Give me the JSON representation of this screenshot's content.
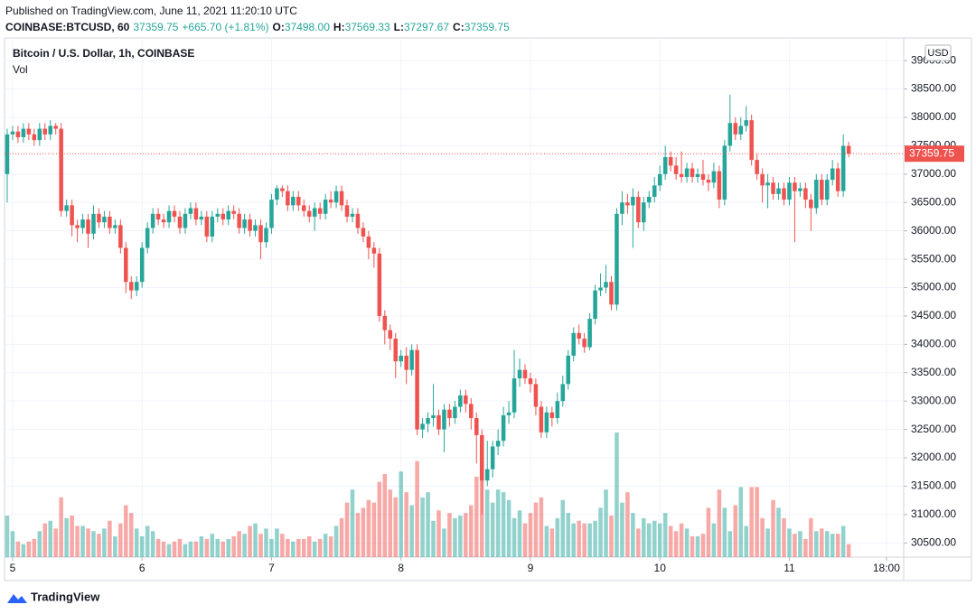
{
  "header": {
    "published": "Published on TradingView.com, June 11, 2021 11:20:10 UTC",
    "symbol": "COINBASE:BTCUSD, 60",
    "last": "37359.75",
    "change": "+665.70 (+1.81%)",
    "ohlc": [
      {
        "label": "O:",
        "value": "37498.00"
      },
      {
        "label": "H:",
        "value": "37569.33"
      },
      {
        "label": "L:",
        "value": "37297.67"
      },
      {
        "label": "C:",
        "value": "37359.75"
      }
    ]
  },
  "logo": "TradingView",
  "chart_data": {
    "type": "candlestick",
    "title": "Bitcoin / U.S. Dollar, 1h, COINBASE",
    "volume_label": "Vol",
    "currency": "USD",
    "up_color": "#26a69a",
    "down_color": "#ef5350",
    "grid": true,
    "last_price": {
      "value": 37359.75,
      "label": "37359.75"
    },
    "ylim": [
      30250,
      39400
    ],
    "yticks": [
      {
        "value": 30500,
        "label": "30500.00"
      },
      {
        "value": 31000,
        "label": "31000.00"
      },
      {
        "value": 31500,
        "label": "31500.00"
      },
      {
        "value": 32000,
        "label": "32000.00"
      },
      {
        "value": 32500,
        "label": "32500.00"
      },
      {
        "value": 33000,
        "label": "33000.00"
      },
      {
        "value": 33500,
        "label": "33500.00"
      },
      {
        "value": 34000,
        "label": "34000.00"
      },
      {
        "value": 34500,
        "label": "34500.00"
      },
      {
        "value": 35000,
        "label": "35000.00"
      },
      {
        "value": 35500,
        "label": "35500.00"
      },
      {
        "value": 36000,
        "label": "36000.00"
      },
      {
        "value": 36500,
        "label": "36500.00"
      },
      {
        "value": 37000,
        "label": "37000.00"
      },
      {
        "value": 37500,
        "label": "37500.00"
      },
      {
        "value": 38000,
        "label": "38000.00"
      },
      {
        "value": 38500,
        "label": "38500.00"
      },
      {
        "value": 39000,
        "label": "39000.00"
      }
    ],
    "xlim": [
      -0.5,
      166.2
    ],
    "xticks": [
      {
        "value": 1,
        "label": "5"
      },
      {
        "value": 25,
        "label": "6"
      },
      {
        "value": 49,
        "label": "7"
      },
      {
        "value": 73,
        "label": "8"
      },
      {
        "value": 97,
        "label": "9"
      },
      {
        "value": 121,
        "label": "10"
      },
      {
        "value": 145,
        "label": "11"
      },
      {
        "value": 163,
        "label": "18:00"
      }
    ],
    "vlim": [
      0,
      10000
    ],
    "open": [
      37000,
      37700,
      37750,
      37650,
      37800,
      37700,
      37600,
      37800,
      37700,
      37850,
      37800,
      36350,
      36450,
      36100,
      36050,
      36200,
      35950,
      36300,
      36150,
      36250,
      36050,
      36100,
      35700,
      35100,
      34950,
      35100,
      35700,
      36050,
      36300,
      36200,
      36150,
      36350,
      36250,
      36050,
      36300,
      36400,
      36200,
      36250,
      35900,
      36250,
      36300,
      36200,
      36350,
      36300,
      36050,
      36200,
      36000,
      36100,
      35800,
      36050,
      36550,
      36750,
      36700,
      36450,
      36600,
      36450,
      36350,
      36250,
      36400,
      36300,
      36550,
      36500,
      36700,
      36450,
      36250,
      36300,
      36050,
      35900,
      35700,
      35600,
      34500,
      34250,
      34100,
      33700,
      33800,
      33550,
      33900,
      32500,
      32600,
      32700,
      32750,
      32500,
      32850,
      32700,
      32900,
      33100,
      32950,
      32700,
      32400,
      31600,
      31800,
      32200,
      32300,
      32750,
      32800,
      33400,
      33550,
      33400,
      33300,
      32900,
      32450,
      32800,
      32700,
      33000,
      33300,
      33800,
      34200,
      34100,
      33950,
      34450,
      34950,
      35000,
      35100,
      34700,
      36300,
      36500,
      36450,
      36600,
      36150,
      36500,
      36600,
      36800,
      37000,
      37300,
      37150,
      37000,
      36950,
      37100,
      36950,
      37000,
      36900,
      36850,
      37050,
      36550,
      37500,
      37900,
      37700,
      37850,
      37950,
      37250,
      37000,
      36800,
      36850,
      36650,
      36750,
      36550,
      36850,
      36700,
      36750,
      36550,
      36400,
      36900,
      36550,
      36900,
      37100,
      36700,
      37498
    ],
    "high": [
      37800,
      37850,
      37850,
      37900,
      37900,
      37800,
      37900,
      37900,
      37950,
      37900,
      37900,
      36550,
      36550,
      36200,
      36300,
      36300,
      36450,
      36400,
      36350,
      36350,
      36200,
      36200,
      35800,
      35200,
      35200,
      35800,
      36150,
      36400,
      36400,
      36300,
      36450,
      36450,
      36350,
      36400,
      36500,
      36500,
      36350,
      36350,
      36350,
      36400,
      36400,
      36450,
      36450,
      36400,
      36300,
      36300,
      36200,
      36200,
      36150,
      36650,
      36800,
      36800,
      36800,
      36700,
      36700,
      36550,
      36450,
      36500,
      36500,
      36650,
      36700,
      36800,
      36800,
      36550,
      36400,
      36400,
      36150,
      36000,
      35800,
      35700,
      34600,
      34350,
      34200,
      33900,
      33950,
      34000,
      34000,
      32700,
      32800,
      33300,
      32850,
      32950,
      32950,
      33000,
      33200,
      33200,
      33050,
      32800,
      32500,
      32300,
      32300,
      32500,
      32900,
      33000,
      33900,
      33750,
      33650,
      33500,
      33400,
      33000,
      32900,
      32900,
      33150,
      33450,
      33900,
      34300,
      34350,
      34200,
      34550,
      35050,
      35250,
      35400,
      35200,
      36400,
      36700,
      36650,
      36750,
      36700,
      36600,
      36700,
      36950,
      37150,
      37500,
      37400,
      37300,
      37400,
      37200,
      37200,
      37100,
      37250,
      37000,
      37200,
      37150,
      37600,
      38400,
      38000,
      38000,
      38200,
      38050,
      37350,
      37100,
      37000,
      36950,
      36850,
      36850,
      36950,
      36950,
      36850,
      36850,
      36650,
      37000,
      37000,
      37000,
      37250,
      37200,
      37700,
      37569.33
    ],
    "low": [
      36500,
      37600,
      37550,
      37550,
      37600,
      37500,
      37500,
      37600,
      37600,
      37700,
      36250,
      36250,
      35900,
      35800,
      35950,
      35700,
      35850,
      36050,
      36050,
      35950,
      35950,
      35600,
      34900,
      34800,
      34850,
      35000,
      35600,
      35950,
      36100,
      36050,
      36050,
      36150,
      35950,
      35950,
      36200,
      36100,
      36100,
      35800,
      35800,
      36150,
      36100,
      36100,
      36200,
      35950,
      35950,
      35900,
      35900,
      35500,
      35700,
      35950,
      36450,
      36600,
      36350,
      36350,
      36350,
      36250,
      36150,
      36000,
      36200,
      36200,
      36400,
      36400,
      36350,
      36150,
      36150,
      35950,
      35800,
      35500,
      35350,
      34400,
      34000,
      33900,
      33400,
      33600,
      33300,
      33450,
      32400,
      32350,
      32450,
      32550,
      32400,
      32100,
      32550,
      32600,
      32800,
      32800,
      32500,
      31900,
      31000,
      31500,
      31650,
      32050,
      32200,
      32600,
      32700,
      33250,
      33300,
      33150,
      32750,
      32350,
      32350,
      32550,
      32600,
      32900,
      33200,
      33700,
      34000,
      33850,
      33900,
      34350,
      34850,
      34900,
      34600,
      34600,
      36100,
      36300,
      35700,
      36050,
      36000,
      36400,
      36500,
      36700,
      36900,
      37050,
      36900,
      36850,
      36850,
      36850,
      36850,
      36800,
      36700,
      36750,
      36400,
      36450,
      37400,
      37600,
      37600,
      37750,
      37150,
      36900,
      36500,
      36400,
      36550,
      36550,
      36450,
      36450,
      35800,
      36600,
      36400,
      36000,
      36300,
      36450,
      36450,
      36800,
      36600,
      36600,
      37297.67
    ],
    "close": [
      37700,
      37750,
      37650,
      37800,
      37700,
      37600,
      37800,
      37700,
      37850,
      37800,
      36350,
      36450,
      36100,
      36050,
      36200,
      35950,
      36300,
      36150,
      36250,
      36050,
      36100,
      35700,
      35100,
      34950,
      35100,
      35700,
      36050,
      36300,
      36200,
      36150,
      36350,
      36250,
      36050,
      36300,
      36400,
      36200,
      36250,
      35900,
      36250,
      36300,
      36200,
      36350,
      36300,
      36050,
      36200,
      36000,
      36100,
      35800,
      36050,
      36550,
      36750,
      36700,
      36450,
      36600,
      36450,
      36350,
      36250,
      36400,
      36300,
      36550,
      36500,
      36700,
      36450,
      36250,
      36300,
      36050,
      35900,
      35700,
      35600,
      34500,
      34250,
      34100,
      33700,
      33800,
      33550,
      33900,
      32500,
      32600,
      32700,
      32750,
      32500,
      32850,
      32700,
      32900,
      33100,
      32950,
      32700,
      32400,
      31600,
      31800,
      32200,
      32300,
      32750,
      32800,
      33400,
      33550,
      33400,
      33300,
      32900,
      32450,
      32800,
      32700,
      33000,
      33300,
      33800,
      34200,
      34100,
      33950,
      34450,
      34950,
      35000,
      35100,
      34700,
      36300,
      36500,
      36450,
      36600,
      36150,
      36500,
      36600,
      36800,
      37000,
      37300,
      37150,
      37000,
      36950,
      37100,
      36950,
      37000,
      36900,
      36850,
      37050,
      36550,
      37500,
      37900,
      37700,
      37850,
      37950,
      37250,
      37000,
      36800,
      36850,
      36650,
      36750,
      36550,
      36850,
      36700,
      36750,
      36550,
      36400,
      36900,
      36550,
      36900,
      37100,
      36700,
      37498,
      37359.75
    ],
    "volume": [
      800,
      500,
      300,
      250,
      300,
      350,
      500,
      650,
      700,
      550,
      1150,
      750,
      800,
      600,
      600,
      550,
      500,
      450,
      550,
      700,
      400,
      650,
      1000,
      850,
      550,
      400,
      600,
      500,
      350,
      300,
      250,
      300,
      350,
      250,
      300,
      300,
      400,
      350,
      450,
      350,
      300,
      350,
      400,
      500,
      450,
      600,
      650,
      450,
      550,
      350,
      550,
      450,
      350,
      300,
      350,
      350,
      400,
      300,
      350,
      450,
      400,
      600,
      750,
      1050,
      1300,
      850,
      950,
      1100,
      1050,
      1450,
      1600,
      1300,
      1150,
      1650,
      1250,
      1000,
      1850,
      1150,
      1250,
      700,
      900,
      550,
      850,
      750,
      800,
      850,
      1000,
      1550,
      2100,
      1300,
      1050,
      1300,
      1250,
      1100,
      750,
      900,
      650,
      850,
      1050,
      1150,
      600,
      550,
      750,
      1100,
      850,
      650,
      700,
      650,
      650,
      700,
      950,
      1300,
      800,
      2400,
      1050,
      1250,
      850,
      550,
      750,
      650,
      700,
      650,
      850,
      600,
      500,
      650,
      550,
      400,
      400,
      450,
      950,
      650,
      1300,
      950,
      500,
      1000,
      1350,
      600,
      1350,
      1350,
      750,
      550,
      1100,
      950,
      750,
      550,
      450,
      500,
      350,
      750,
      500,
      550,
      500,
      450,
      450,
      600,
      250
    ]
  }
}
